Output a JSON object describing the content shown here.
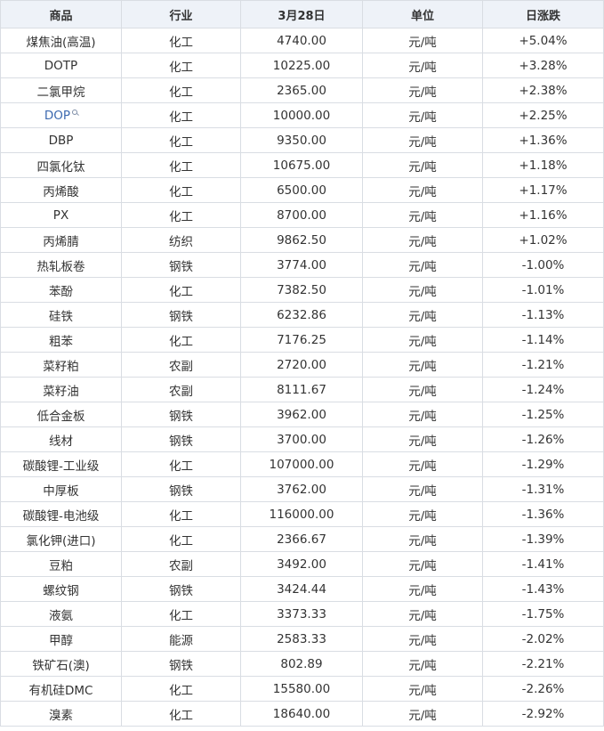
{
  "table": {
    "headers": {
      "name": "商品",
      "industry": "行业",
      "price": "3月28日",
      "unit": "单位",
      "change": "日涨跌"
    },
    "colors": {
      "up": "#e0262c",
      "down": "#1b9a2c",
      "link": "#3d6ab0",
      "header_bg": "#eef2f8",
      "border": "#d9dde3"
    },
    "rows": [
      {
        "name": "煤焦油(高温)",
        "industry": "化工",
        "price": "4740.00",
        "unit": "元/吨",
        "change": "+5.04%"
      },
      {
        "name": "DOTP",
        "industry": "化工",
        "price": "10225.00",
        "unit": "元/吨",
        "change": "+3.28%"
      },
      {
        "name": "二氯甲烷",
        "industry": "化工",
        "price": "2365.00",
        "unit": "元/吨",
        "change": "+2.38%"
      },
      {
        "name": "DOP",
        "industry": "化工",
        "price": "10000.00",
        "unit": "元/吨",
        "change": "+2.25%",
        "link": true,
        "icon": "search-icon"
      },
      {
        "name": "DBP",
        "industry": "化工",
        "price": "9350.00",
        "unit": "元/吨",
        "change": "+1.36%"
      },
      {
        "name": "四氯化钛",
        "industry": "化工",
        "price": "10675.00",
        "unit": "元/吨",
        "change": "+1.18%"
      },
      {
        "name": "丙烯酸",
        "industry": "化工",
        "price": "6500.00",
        "unit": "元/吨",
        "change": "+1.17%"
      },
      {
        "name": "PX",
        "industry": "化工",
        "price": "8700.00",
        "unit": "元/吨",
        "change": "+1.16%"
      },
      {
        "name": "丙烯腈",
        "industry": "纺织",
        "price": "9862.50",
        "unit": "元/吨",
        "change": "+1.02%"
      },
      {
        "name": "热轧板卷",
        "industry": "钢铁",
        "price": "3774.00",
        "unit": "元/吨",
        "change": "-1.00%"
      },
      {
        "name": "苯酚",
        "industry": "化工",
        "price": "7382.50",
        "unit": "元/吨",
        "change": "-1.01%"
      },
      {
        "name": "硅铁",
        "industry": "钢铁",
        "price": "6232.86",
        "unit": "元/吨",
        "change": "-1.13%"
      },
      {
        "name": "粗苯",
        "industry": "化工",
        "price": "7176.25",
        "unit": "元/吨",
        "change": "-1.14%"
      },
      {
        "name": "菜籽粕",
        "industry": "农副",
        "price": "2720.00",
        "unit": "元/吨",
        "change": "-1.21%"
      },
      {
        "name": "菜籽油",
        "industry": "农副",
        "price": "8111.67",
        "unit": "元/吨",
        "change": "-1.24%"
      },
      {
        "name": "低合金板",
        "industry": "钢铁",
        "price": "3962.00",
        "unit": "元/吨",
        "change": "-1.25%"
      },
      {
        "name": "线材",
        "industry": "钢铁",
        "price": "3700.00",
        "unit": "元/吨",
        "change": "-1.26%"
      },
      {
        "name": "碳酸锂-工业级",
        "industry": "化工",
        "price": "107000.00",
        "unit": "元/吨",
        "change": "-1.29%"
      },
      {
        "name": "中厚板",
        "industry": "钢铁",
        "price": "3762.00",
        "unit": "元/吨",
        "change": "-1.31%"
      },
      {
        "name": "碳酸锂-电池级",
        "industry": "化工",
        "price": "116000.00",
        "unit": "元/吨",
        "change": "-1.36%"
      },
      {
        "name": "氯化钾(进口)",
        "industry": "化工",
        "price": "2366.67",
        "unit": "元/吨",
        "change": "-1.39%"
      },
      {
        "name": "豆粕",
        "industry": "农副",
        "price": "3492.00",
        "unit": "元/吨",
        "change": "-1.41%"
      },
      {
        "name": "螺纹钢",
        "industry": "钢铁",
        "price": "3424.44",
        "unit": "元/吨",
        "change": "-1.43%"
      },
      {
        "name": "液氨",
        "industry": "化工",
        "price": "3373.33",
        "unit": "元/吨",
        "change": "-1.75%"
      },
      {
        "name": "甲醇",
        "industry": "能源",
        "price": "2583.33",
        "unit": "元/吨",
        "change": "-2.02%"
      },
      {
        "name": "铁矿石(澳)",
        "industry": "钢铁",
        "price": "802.89",
        "unit": "元/吨",
        "change": "-2.21%"
      },
      {
        "name": "有机硅DMC",
        "industry": "化工",
        "price": "15580.00",
        "unit": "元/吨",
        "change": "-2.26%"
      },
      {
        "name": "溴素",
        "industry": "化工",
        "price": "18640.00",
        "unit": "元/吨",
        "change": "-2.92%"
      }
    ]
  }
}
